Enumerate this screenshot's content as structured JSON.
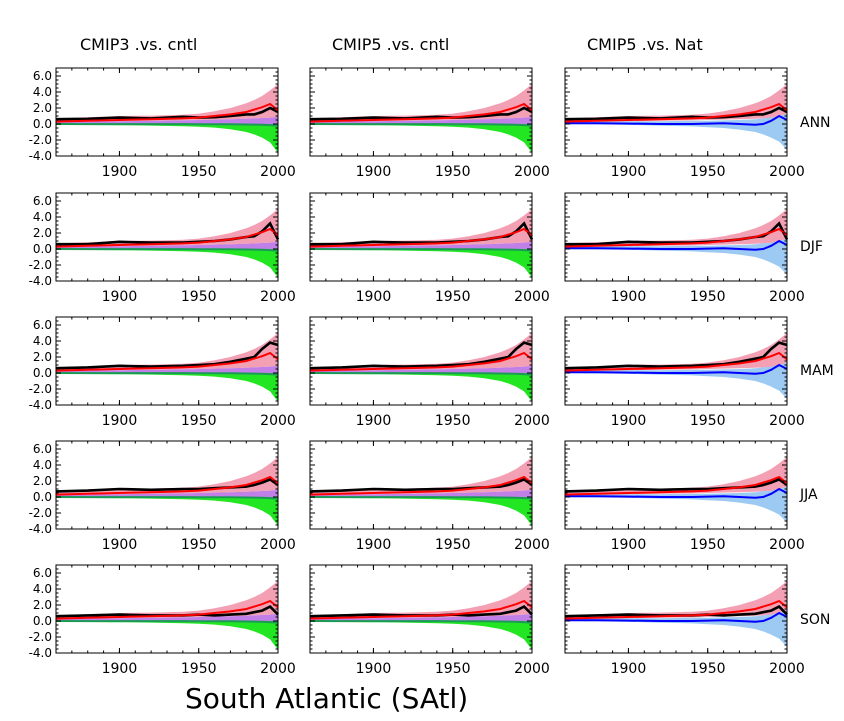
{
  "figure": {
    "region_title": "South Atlantic (SAtl)",
    "column_titles": [
      "CMIP3 .vs. cntl",
      "CMIP5 .vs. cntl",
      "CMIP5 .vs. Nat"
    ],
    "row_labels": [
      "ANN",
      "DJF",
      "MAM",
      "JJA",
      "SON"
    ]
  },
  "colors": {
    "observed": "#000000",
    "forced_mean": "#ff0000",
    "forced_spread": "#f4a0b4",
    "overlap": "#c080e8",
    "control_spread": "#22e622",
    "control_line": "#1a9a55",
    "natural_spread": "#9ccaf2",
    "natural_mean": "#0000ff"
  },
  "chart_data": {
    "type": "line",
    "layout": "5 rows x 3 columns small multiples",
    "xlim": [
      1860,
      2000
    ],
    "ylim": [
      -4.0,
      7.0
    ],
    "x_ticks": [
      "1900",
      "1950",
      "2000"
    ],
    "y_ticks": [
      "6.0",
      "4.0",
      "2.0",
      "0.0",
      "-2.0",
      "-4.0"
    ],
    "x": [
      1860,
      1880,
      1900,
      1920,
      1940,
      1950,
      1960,
      1970,
      1980,
      1985,
      1990,
      1995,
      2000
    ],
    "observed_gaps": [
      [
        1913,
        1918
      ],
      [
        1942,
        1947
      ]
    ],
    "forced_spread_upper": [
      0.7,
      0.85,
      1.0,
      1.05,
      1.15,
      1.3,
      1.6,
      2.0,
      2.6,
      3.0,
      3.5,
      4.2,
      5.0
    ],
    "forced_spread_lower": [
      0.25,
      0.3,
      0.35,
      0.4,
      0.45,
      0.5,
      0.55,
      0.6,
      0.65,
      0.7,
      0.75,
      0.8,
      0.9
    ],
    "control_spread_lower": [
      -0.1,
      -0.12,
      -0.15,
      -0.2,
      -0.28,
      -0.35,
      -0.45,
      -0.65,
      -1.0,
      -1.3,
      -1.7,
      -2.3,
      -3.6
    ],
    "natural_spread_lower": [
      0.0,
      -0.05,
      -0.1,
      -0.2,
      -0.3,
      -0.4,
      -0.5,
      -0.7,
      -1.0,
      -1.3,
      -1.7,
      -2.2,
      -3.2
    ],
    "natural_spread_upper": [
      0.35,
      0.35,
      0.35,
      0.35,
      0.4,
      0.4,
      0.45,
      0.5,
      0.6,
      0.7,
      0.8,
      1.0,
      1.3
    ],
    "natural_mean": [
      0.1,
      0.1,
      0.05,
      0.0,
      0.0,
      0.05,
      0.1,
      0.0,
      -0.1,
      0.0,
      0.4,
      1.0,
      0.5
    ],
    "forced_mean": [
      0.3,
      0.4,
      0.5,
      0.6,
      0.7,
      0.8,
      1.0,
      1.2,
      1.5,
      1.8,
      2.1,
      2.5,
      1.7
    ],
    "observed": [
      [
        0.6,
        0.65,
        0.8,
        0.7,
        0.9,
        0.8,
        0.85,
        1.0,
        1.2,
        1.2,
        1.5,
        2.0,
        1.5
      ],
      [
        0.6,
        0.6,
        0.9,
        0.8,
        0.8,
        0.9,
        1.0,
        1.2,
        1.5,
        1.6,
        2.2,
        3.2,
        1.2
      ],
      [
        0.6,
        0.7,
        0.9,
        0.8,
        0.9,
        1.0,
        1.1,
        1.4,
        1.8,
        2.0,
        3.0,
        3.8,
        3.5
      ],
      [
        0.7,
        0.8,
        1.0,
        0.9,
        1.0,
        1.0,
        1.1,
        1.2,
        1.3,
        1.5,
        1.8,
        2.2,
        1.5
      ],
      [
        0.6,
        0.7,
        0.8,
        0.7,
        0.7,
        0.8,
        0.7,
        0.8,
        0.9,
        1.1,
        1.3,
        1.8,
        0.8
      ]
    ]
  }
}
